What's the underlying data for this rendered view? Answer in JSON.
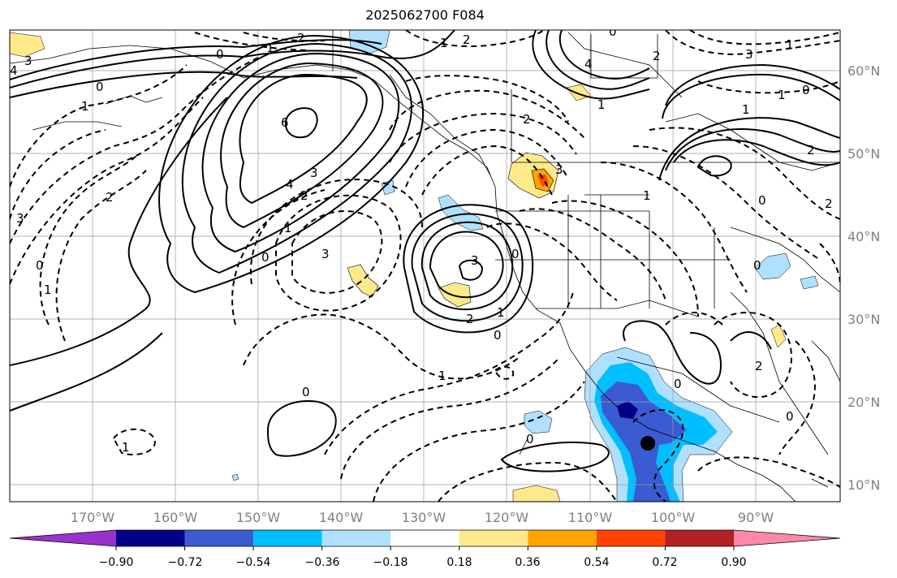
{
  "title": "2025062700 F084",
  "lon_labels": [
    "170°W",
    "160°W",
    "150°W",
    "140°W",
    "130°W",
    "120°W",
    "110°W",
    "100°W",
    "90°W"
  ],
  "lat_labels": [
    "60°N",
    "50°N",
    "40°N",
    "30°N",
    "20°N",
    "10°N"
  ],
  "colorbar": {
    "ticks": [
      "−0.90",
      "−0.72",
      "−0.54",
      "−0.36",
      "−0.18",
      "0.18",
      "0.36",
      "0.54",
      "0.72",
      "0.90"
    ],
    "colors": [
      "#9932cc",
      "#00008b",
      "#3a5bd1",
      "#00bfff",
      "#b0e0ff",
      "#ffffff",
      "#ffe98a",
      "#ffa500",
      "#ff4500",
      "#b22222",
      "#ff88aa"
    ]
  },
  "contour_labels": [
    "3",
    "4",
    "0",
    "1",
    "2",
    "0",
    "1",
    "6",
    "4",
    "3",
    "2",
    "1",
    "0",
    "2",
    "3",
    "3",
    "3",
    "0",
    "1",
    "2",
    "0",
    "1",
    "1",
    "0",
    "0",
    "1",
    "2",
    "3",
    "4",
    "0",
    "2",
    "1",
    "2",
    "3",
    "1",
    "1",
    "0",
    "1",
    "0",
    "0",
    "2",
    "0",
    "2",
    "0",
    "0",
    "1",
    "2",
    "1"
  ],
  "marker": {
    "name": "center-point",
    "color": "#000000"
  }
}
